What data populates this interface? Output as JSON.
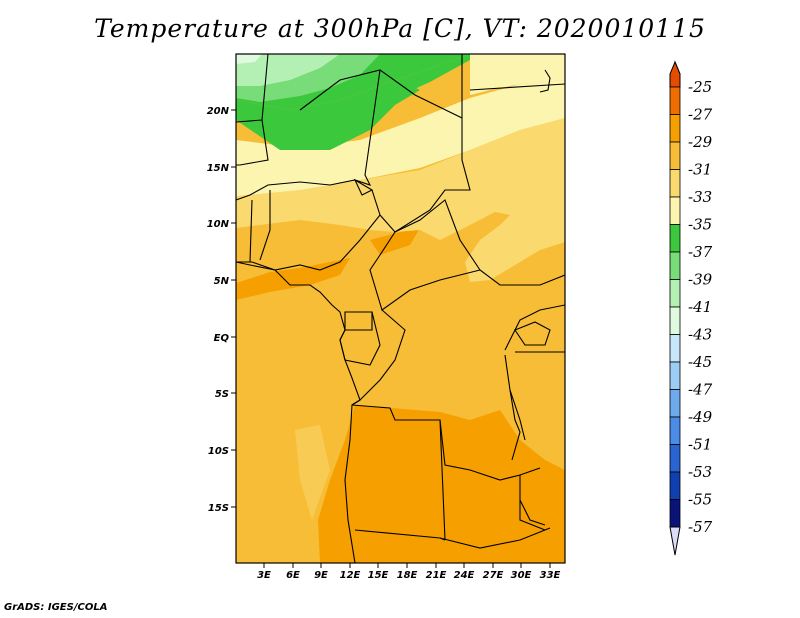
{
  "title": "Temperature at 300hPa [C], VT: 2020010115",
  "credit": "GrADS: IGES/COLA",
  "map": {
    "lat_labels": [
      "20N",
      "15N",
      "10N",
      "5N",
      "EQ",
      "5S",
      "10S",
      "15S"
    ],
    "lon_labels": [
      "3E",
      "6E",
      "9E",
      "12E",
      "15E",
      "18E",
      "21E",
      "24E",
      "27E",
      "30E",
      "33E"
    ],
    "extent": {
      "lon": [
        0,
        34.5
      ],
      "lat": [
        -19.5,
        25
      ]
    }
  },
  "colorbar": {
    "labels": [
      "-25",
      "-27",
      "-29",
      "-31",
      "-33",
      "-35",
      "-37",
      "-39",
      "-41",
      "-43",
      "-45",
      "-47",
      "-49",
      "-51",
      "-53",
      "-55",
      "-57"
    ],
    "colors": [
      "#e64c00",
      "#f06e00",
      "#f5a000",
      "#f7bd36",
      "#fad96e",
      "#fcf5b0",
      "#3cc83c",
      "#78dc78",
      "#b4f0b4",
      "#e0fae0",
      "#c8e6fa",
      "#9ccdf5",
      "#6eaaec",
      "#4a8ce6",
      "#2a64d2",
      "#1040b0",
      "#0a1478",
      "#dcdcfa"
    ]
  },
  "chart_data": {
    "type": "heatmap",
    "title": "Temperature at 300hPa [C], VT: 2020010115",
    "xlim": [
      0,
      34.5
    ],
    "ylim": [
      -19.5,
      25
    ],
    "x_ticks": [
      "3E",
      "6E",
      "9E",
      "12E",
      "15E",
      "18E",
      "21E",
      "24E",
      "27E",
      "30E",
      "33E"
    ],
    "y_ticks": [
      "20N",
      "15N",
      "10N",
      "5N",
      "EQ",
      "5S",
      "10S",
      "15S"
    ],
    "colorbar_levels": [
      -25,
      -27,
      -29,
      -31,
      -33,
      -35,
      -37,
      -39,
      -41,
      -43,
      -45,
      -47,
      -49,
      -51,
      -53,
      -55,
      -57
    ],
    "regions": [
      {
        "area": "far northwest",
        "value_range": [
          -41,
          -39
        ]
      },
      {
        "area": "northern band ~20N",
        "value_range": [
          -37,
          -35
        ]
      },
      {
        "area": "Sahel ~15N",
        "value_range": [
          -35,
          -33
        ]
      },
      {
        "area": "central belt 5N-10N",
        "value_range": [
          -31,
          -29
        ]
      },
      {
        "area": "equatorial and south",
        "value_range": [
          -29,
          -27
        ]
      }
    ]
  }
}
